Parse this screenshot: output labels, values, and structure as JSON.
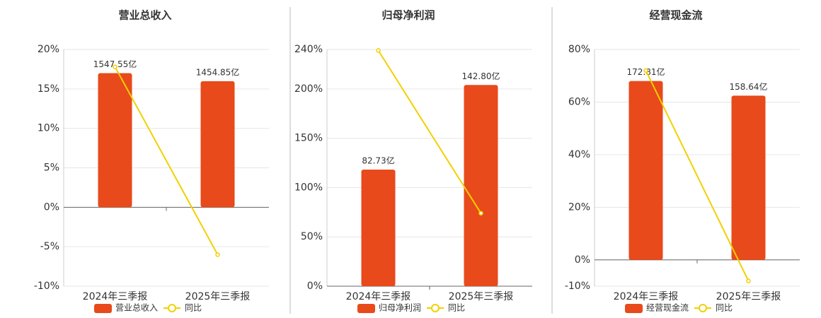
{
  "chart_data": [
    {
      "type": "combo",
      "title": "营业总收入",
      "categories": [
        "2024年三季报",
        "2025年三季报"
      ],
      "series": [
        {
          "name": "营业总收入",
          "color": "#e84a1b",
          "values": [
            1547.55,
            1454.85
          ],
          "value_labels": [
            "1547.55亿",
            "1454.85亿"
          ]
        },
        {
          "name": "同比",
          "color": "#f2d000",
          "values": [
            17.8,
            -6
          ]
        }
      ],
      "ylim": [
        -10,
        20
      ],
      "yticks": [
        {
          "value": -10,
          "label": "-10%"
        },
        {
          "value": -5,
          "label": "-5%"
        },
        {
          "value": 0,
          "label": "0%"
        },
        {
          "value": 5,
          "label": "5%"
        },
        {
          "value": 10,
          "label": "10%"
        },
        {
          "value": 15,
          "label": "15%"
        },
        {
          "value": 20,
          "label": "20%"
        }
      ],
      "grid": true
    },
    {
      "type": "combo",
      "title": "归母净利润",
      "categories": [
        "2024年三季报",
        "2025年三季报"
      ],
      "series": [
        {
          "name": "归母净利润",
          "color": "#e84a1b",
          "values": [
            82.73,
            142.8
          ],
          "value_labels": [
            "82.73亿",
            "142.80亿"
          ]
        },
        {
          "name": "同比",
          "color": "#f2d000",
          "values": [
            239,
            74
          ]
        }
      ],
      "ylim": [
        0,
        240
      ],
      "yticks": [
        {
          "value": 0,
          "label": "0%"
        },
        {
          "value": 50,
          "label": "50%"
        },
        {
          "value": 100,
          "label": "100%"
        },
        {
          "value": 150,
          "label": "150%"
        },
        {
          "value": 200,
          "label": "200%"
        },
        {
          "value": 240,
          "label": "240%"
        }
      ],
      "grid": true
    },
    {
      "type": "combo",
      "title": "经营现金流",
      "categories": [
        "2024年三季报",
        "2025年三季报"
      ],
      "series": [
        {
          "name": "经营现金流",
          "color": "#e84a1b",
          "values": [
            172.81,
            158.64
          ],
          "value_labels": [
            "172.81亿",
            "158.64亿"
          ]
        },
        {
          "name": "同比",
          "color": "#f2d000",
          "values": [
            72,
            -8
          ]
        }
      ],
      "ylim": [
        -10,
        80
      ],
      "yticks": [
        {
          "value": -10,
          "label": "-10%"
        },
        {
          "value": 0,
          "label": "0%"
        },
        {
          "value": 20,
          "label": "20%"
        },
        {
          "value": 40,
          "label": "40%"
        },
        {
          "value": 60,
          "label": "60%"
        },
        {
          "value": 80,
          "label": "80%"
        }
      ],
      "grid": true
    }
  ]
}
